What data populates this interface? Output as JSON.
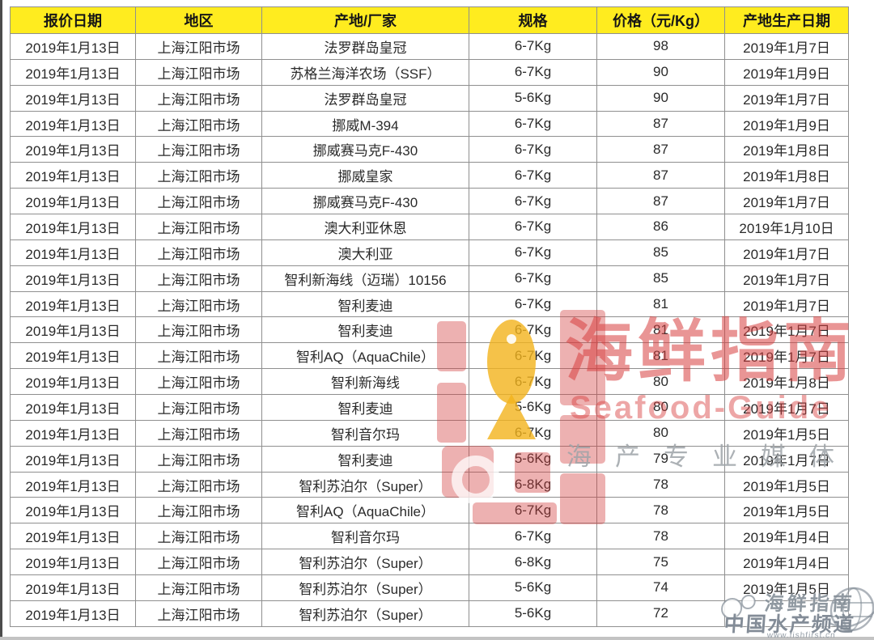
{
  "table": {
    "columns": [
      {
        "key": "quote_date",
        "label": "报价日期"
      },
      {
        "key": "region",
        "label": "地区"
      },
      {
        "key": "producer",
        "label": "产地/厂家"
      },
      {
        "key": "spec",
        "label": "规格"
      },
      {
        "key": "price",
        "label": "价格（元/Kg）"
      },
      {
        "key": "prod_date",
        "label": "产地生产日期"
      }
    ],
    "rows": [
      {
        "quote_date": "2019年1月13日",
        "region": "上海江阳市场",
        "producer": "法罗群岛皇冠",
        "spec": "6-7Kg",
        "price": "98",
        "prod_date": "2019年1月7日"
      },
      {
        "quote_date": "2019年1月13日",
        "region": "上海江阳市场",
        "producer": "苏格兰海洋农场（SSF）",
        "spec": "6-7Kg",
        "price": "90",
        "prod_date": "2019年1月9日"
      },
      {
        "quote_date": "2019年1月13日",
        "region": "上海江阳市场",
        "producer": "法罗群岛皇冠",
        "spec": "5-6Kg",
        "price": "90",
        "prod_date": "2019年1月7日"
      },
      {
        "quote_date": "2019年1月13日",
        "region": "上海江阳市场",
        "producer": "挪威M-394",
        "spec": "6-7Kg",
        "price": "87",
        "prod_date": "2019年1月9日"
      },
      {
        "quote_date": "2019年1月13日",
        "region": "上海江阳市场",
        "producer": "挪威赛马克F-430",
        "spec": "6-7Kg",
        "price": "87",
        "prod_date": "2019年1月8日"
      },
      {
        "quote_date": "2019年1月13日",
        "region": "上海江阳市场",
        "producer": "挪威皇家",
        "spec": "6-7Kg",
        "price": "87",
        "prod_date": "2019年1月8日"
      },
      {
        "quote_date": "2019年1月13日",
        "region": "上海江阳市场",
        "producer": "挪威赛马克F-430",
        "spec": "6-7Kg",
        "price": "87",
        "prod_date": "2019年1月7日"
      },
      {
        "quote_date": "2019年1月13日",
        "region": "上海江阳市场",
        "producer": "澳大利亚休恩",
        "spec": "6-7Kg",
        "price": "86",
        "prod_date": "2019年1月10日"
      },
      {
        "quote_date": "2019年1月13日",
        "region": "上海江阳市场",
        "producer": "澳大利亚",
        "spec": "6-7Kg",
        "price": "85",
        "prod_date": "2019年1月7日"
      },
      {
        "quote_date": "2019年1月13日",
        "region": "上海江阳市场",
        "producer": "智利新海线（迈瑞）10156",
        "spec": "6-7Kg",
        "price": "85",
        "prod_date": "2019年1月7日"
      },
      {
        "quote_date": "2019年1月13日",
        "region": "上海江阳市场",
        "producer": "智利麦迪",
        "spec": "6-7Kg",
        "price": "81",
        "prod_date": "2019年1月7日"
      },
      {
        "quote_date": "2019年1月13日",
        "region": "上海江阳市场",
        "producer": "智利麦迪",
        "spec": "6-7Kg",
        "price": "81",
        "prod_date": "2019年1月7日"
      },
      {
        "quote_date": "2019年1月13日",
        "region": "上海江阳市场",
        "producer": "智利AQ（AquaChile）",
        "spec": "6-7Kg",
        "price": "81",
        "prod_date": "2019年1月7日"
      },
      {
        "quote_date": "2019年1月13日",
        "region": "上海江阳市场",
        "producer": "智利新海线",
        "spec": "6-7Kg",
        "price": "80",
        "prod_date": "2019年1月8日"
      },
      {
        "quote_date": "2019年1月13日",
        "region": "上海江阳市场",
        "producer": "智利麦迪",
        "spec": "5-6Kg",
        "price": "80",
        "prod_date": "2019年1月7日"
      },
      {
        "quote_date": "2019年1月13日",
        "region": "上海江阳市场",
        "producer": "智利音尔玛",
        "spec": "6-7Kg",
        "price": "80",
        "prod_date": "2019年1月5日"
      },
      {
        "quote_date": "2019年1月13日",
        "region": "上海江阳市场",
        "producer": "智利麦迪",
        "spec": "5-6Kg",
        "price": "79",
        "prod_date": "2019年1月7日"
      },
      {
        "quote_date": "2019年1月13日",
        "region": "上海江阳市场",
        "producer": "智利苏泊尔（Super）",
        "spec": "6-8Kg",
        "price": "78",
        "prod_date": "2019年1月5日"
      },
      {
        "quote_date": "2019年1月13日",
        "region": "上海江阳市场",
        "producer": "智利AQ（AquaChile）",
        "spec": "6-7Kg",
        "price": "78",
        "prod_date": "2019年1月5日"
      },
      {
        "quote_date": "2019年1月13日",
        "region": "上海江阳市场",
        "producer": "智利音尔玛",
        "spec": "6-7Kg",
        "price": "78",
        "prod_date": "2019年1月4日"
      },
      {
        "quote_date": "2019年1月13日",
        "region": "上海江阳市场",
        "producer": "智利苏泊尔（Super）",
        "spec": "6-8Kg",
        "price": "75",
        "prod_date": "2019年1月4日"
      },
      {
        "quote_date": "2019年1月13日",
        "region": "上海江阳市场",
        "producer": "智利苏泊尔（Super）",
        "spec": "5-6Kg",
        "price": "74",
        "prod_date": "2019年1月5日"
      },
      {
        "quote_date": "2019年1月13日",
        "region": "上海江阳市场",
        "producer": "智利苏泊尔（Super）",
        "spec": "5-6Kg",
        "price": "72",
        "prod_date": ""
      }
    ]
  },
  "watermarks": {
    "brand_title": "海鲜指南",
    "brand_subtitle": "Seafood-Guide",
    "brand_tagline": "海产专业媒体",
    "corner_line1": "海鲜指南",
    "corner_line2": "中国水产频道",
    "corner_url": "www.fishfirst.cn"
  },
  "colors": {
    "header_bg": "#ffec1f",
    "grid_line": "#8f8f8f",
    "cell_text": "#2a2a2a",
    "watermark_red": "#d73e3e",
    "watermark_gray": "#9ea3a8",
    "fish_yellow": "#f2b31c"
  }
}
